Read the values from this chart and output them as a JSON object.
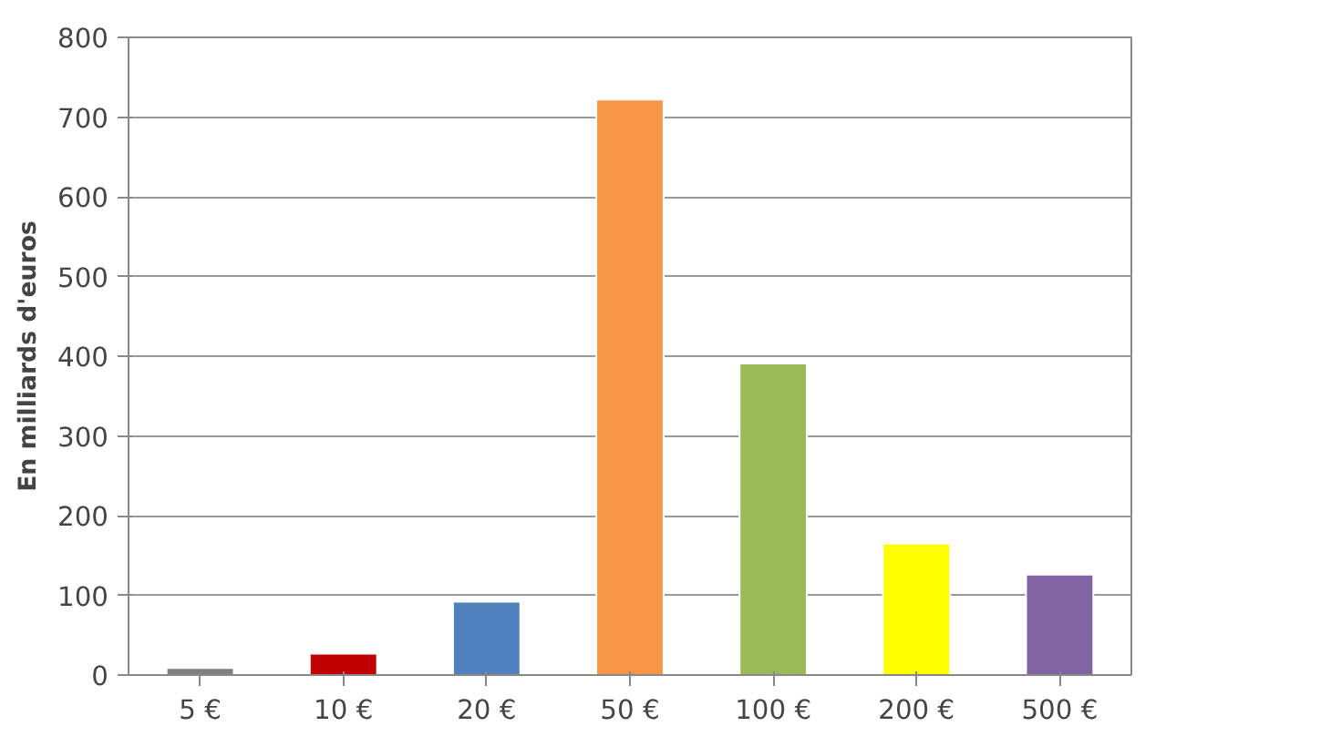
{
  "chart_data": {
    "type": "bar",
    "ylabel": "En milliards d'euros",
    "categories": [
      "5 €",
      "10 €",
      "20 €",
      "50 €",
      "100 €",
      "200 €",
      "500 €"
    ],
    "values": [
      9,
      27,
      92,
      722,
      391,
      165,
      126
    ],
    "colors": [
      "#7f7f7f",
      "#c00000",
      "#4f81bd",
      "#f79646",
      "#9bbb59",
      "#ffff00",
      "#8064a2"
    ],
    "ylim": [
      0,
      800
    ],
    "yticks": [
      0,
      100,
      200,
      300,
      400,
      500,
      600,
      700,
      800
    ],
    "grid": "y"
  }
}
